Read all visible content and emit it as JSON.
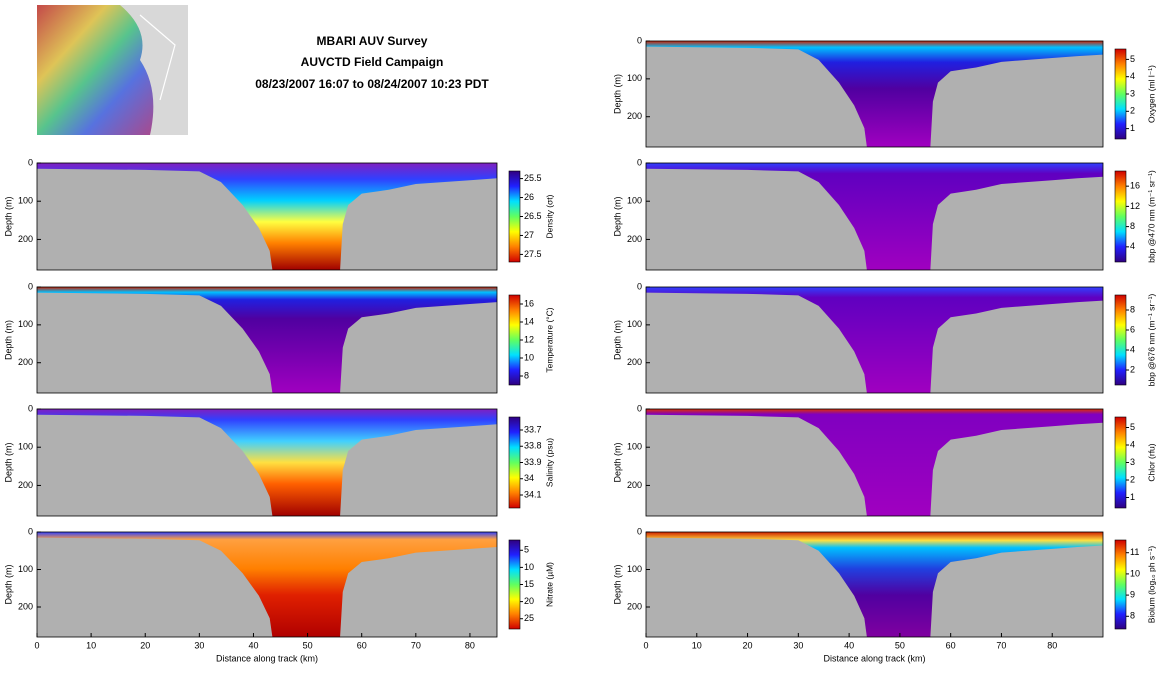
{
  "header": {
    "lines": [
      "MBARI AUV Survey",
      "AUVCTD Field Campaign",
      "08/23/2007 16:07 to 08/24/2007 10:23 PDT"
    ]
  },
  "chart_data": [
    {
      "type": "contour",
      "ylabel": "Depth (m)",
      "ylim": [
        0,
        280
      ],
      "yticks": [
        0,
        100,
        200
      ],
      "xlim": [
        0,
        85
      ],
      "colorbar": {
        "label": "Density (σt)",
        "lim": [
          25.3,
          27.7
        ],
        "ticks": [
          25.5,
          26,
          26.5,
          27,
          27.5
        ]
      }
    },
    {
      "type": "contour",
      "ylabel": "Depth (m)",
      "ylim": [
        0,
        280
      ],
      "yticks": [
        0,
        100,
        200
      ],
      "xlim": [
        0,
        85
      ],
      "colorbar": {
        "label": "Temperature (°C)",
        "lim": [
          17,
          7
        ],
        "ticks": [
          16,
          14,
          12,
          10,
          8
        ]
      }
    },
    {
      "type": "contour",
      "ylabel": "Depth (m)",
      "ylim": [
        0,
        280
      ],
      "yticks": [
        0,
        100,
        200
      ],
      "xlim": [
        0,
        85
      ],
      "colorbar": {
        "label": "Salinity (psu)",
        "lim": [
          33.62,
          34.18
        ],
        "ticks": [
          33.7,
          33.8,
          33.9,
          34,
          34.1
        ]
      }
    },
    {
      "type": "contour",
      "ylabel": "Depth (m)",
      "ylim": [
        0,
        280
      ],
      "yticks": [
        0,
        100,
        200
      ],
      "xlim": [
        0,
        85
      ],
      "xlabel": "Distance along track (km)",
      "xticks": [
        0,
        10,
        20,
        30,
        40,
        50,
        60,
        70,
        80
      ],
      "colorbar": {
        "label": "Nitrate (µM)",
        "lim": [
          2,
          28
        ],
        "ticks": [
          5,
          10,
          15,
          20,
          25
        ]
      }
    },
    {
      "type": "contour",
      "ylabel": "Depth (m)",
      "ylim": [
        0,
        280
      ],
      "yticks": [
        0,
        100,
        200
      ],
      "xlim": [
        0,
        90
      ],
      "colorbar": {
        "label": "Oxygen (ml l⁻¹)",
        "lim": [
          5.6,
          0.4
        ],
        "ticks": [
          5,
          4,
          3,
          2,
          1
        ]
      }
    },
    {
      "type": "contour",
      "ylabel": "Depth (m)",
      "ylim": [
        0,
        280
      ],
      "yticks": [
        0,
        100,
        200
      ],
      "xlim": [
        0,
        90
      ],
      "colorbar": {
        "label": "bbp @470 nm (m⁻¹ sr⁻¹)",
        "lim": [
          19,
          1
        ],
        "ticks": [
          16,
          12,
          8,
          4
        ]
      }
    },
    {
      "type": "contour",
      "ylabel": "Depth (m)",
      "ylim": [
        0,
        280
      ],
      "yticks": [
        0,
        100,
        200
      ],
      "xlim": [
        0,
        90
      ],
      "colorbar": {
        "label": "bbp @676 nm (m⁻¹ sr⁻¹)",
        "lim": [
          9.5,
          0.5
        ],
        "ticks": [
          8,
          6,
          4,
          2
        ]
      }
    },
    {
      "type": "contour",
      "ylabel": "Depth (m)",
      "ylim": [
        0,
        280
      ],
      "yticks": [
        0,
        100,
        200
      ],
      "xlim": [
        0,
        90
      ],
      "colorbar": {
        "label": "Chlor (rfu)",
        "lim": [
          5.6,
          0.4
        ],
        "ticks": [
          5,
          4,
          3,
          2,
          1
        ]
      }
    },
    {
      "type": "contour",
      "ylabel": "Depth (m)",
      "ylim": [
        0,
        280
      ],
      "yticks": [
        0,
        100,
        200
      ],
      "xlim": [
        0,
        90
      ],
      "xlabel": "Distance along track (km)",
      "xticks": [
        0,
        10,
        20,
        30,
        40,
        50,
        60,
        70,
        80
      ],
      "colorbar": {
        "label": "Biolum (log₁₀ ph s⁻¹)",
        "lim": [
          11.6,
          7.4
        ],
        "ticks": [
          11,
          10,
          9,
          8
        ]
      }
    }
  ]
}
